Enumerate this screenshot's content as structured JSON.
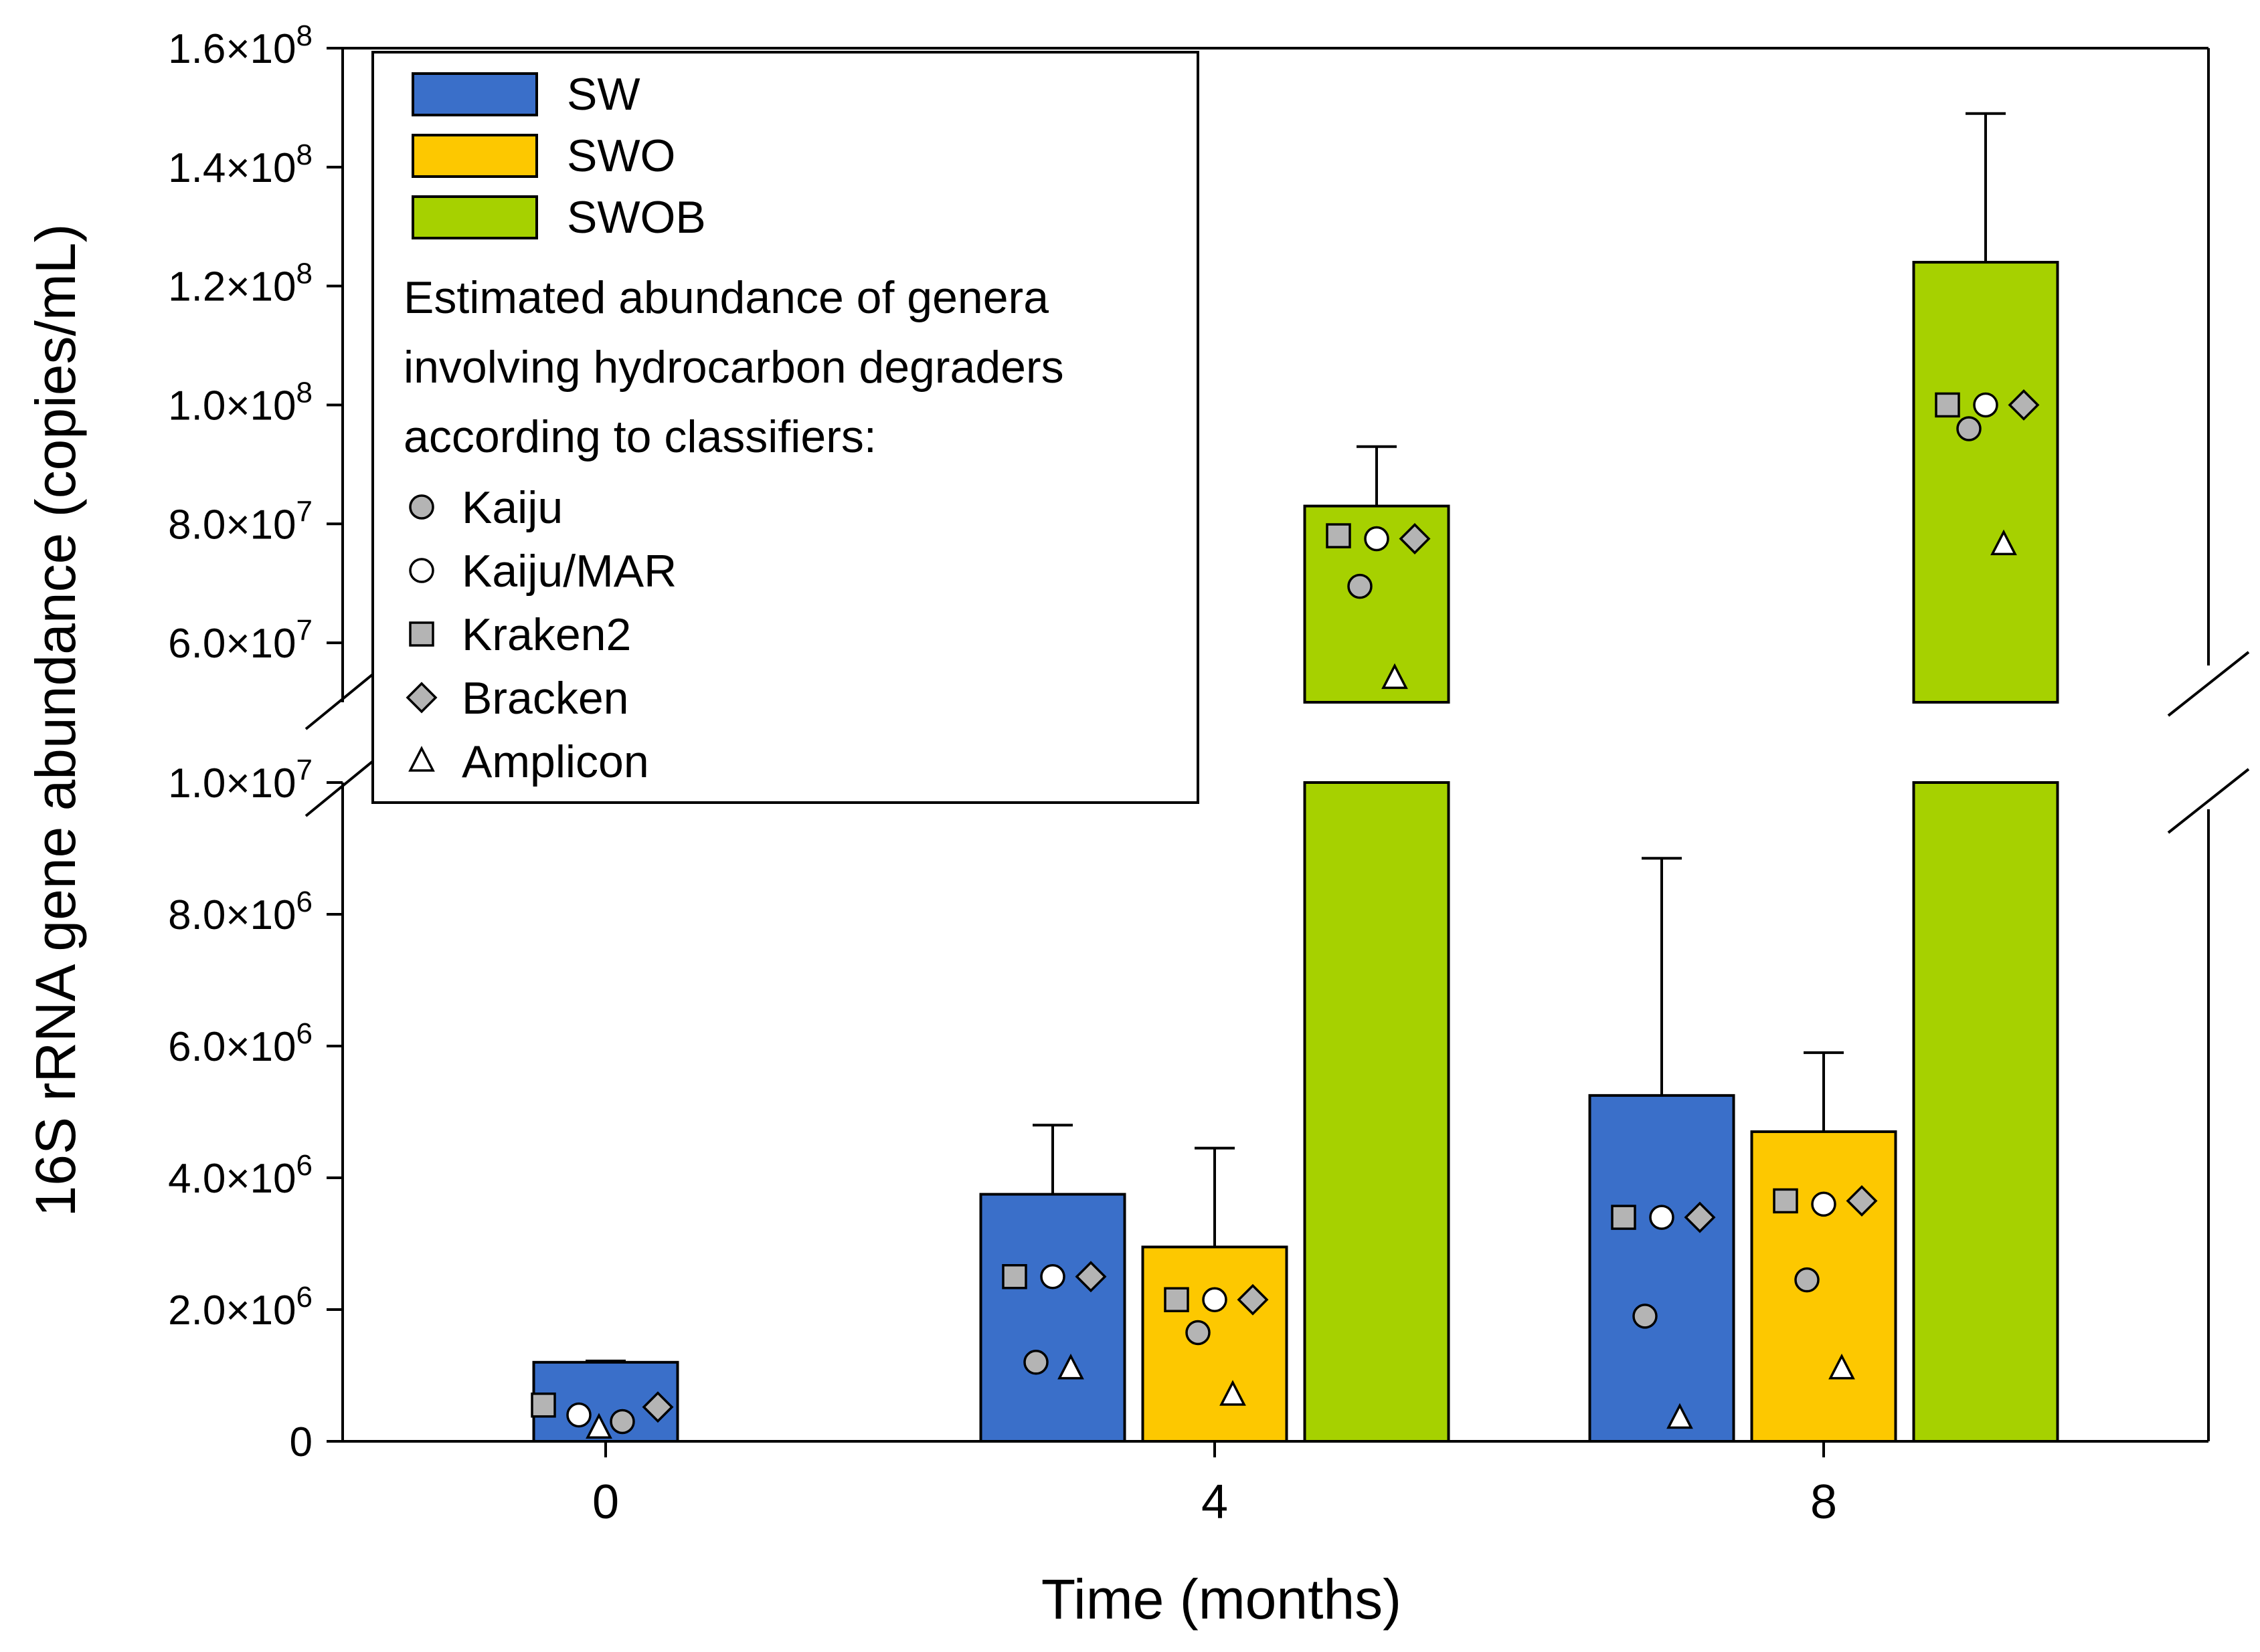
{
  "chart_data": {
    "type": "bar",
    "xlabel": "Time (months)",
    "ylabel": "16S rRNA gene abundance (copies/mL)",
    "categories": [
      "0",
      "4",
      "8"
    ],
    "y_axis": {
      "broken": true,
      "lower_segment": {
        "range": [
          0,
          10000000
        ],
        "ticks": [
          0,
          2000000,
          4000000,
          6000000,
          8000000,
          10000000
        ]
      },
      "upper_segment": {
        "range": [
          50000000,
          160000000
        ],
        "ticks": [
          60000000,
          80000000,
          100000000,
          120000000,
          140000000,
          160000000
        ]
      },
      "tick_labels": {
        "lower": [
          "0",
          "2.0×10",
          "4.0×10",
          "6.0×10",
          "8.0×10",
          "1.0×10"
        ],
        "lower_exp": [
          "",
          "6",
          "6",
          "6",
          "6",
          "7"
        ],
        "upper": [
          "6.0×10",
          "8.0×10",
          "1.0×10",
          "1.2×10",
          "1.4×10",
          "1.6×10"
        ],
        "upper_exp": [
          "7",
          "7",
          "8",
          "8",
          "8",
          "8"
        ]
      }
    },
    "series": [
      {
        "name": "SW",
        "color": "#3a6fc9",
        "values": [
          1200000,
          3750000,
          5250000
        ],
        "error_upper": [
          1220000,
          4800000,
          8850000
        ]
      },
      {
        "name": "SWO",
        "color": "#fdc800",
        "values": [
          null,
          2950000,
          4700000
        ],
        "error_upper": [
          null,
          4450000,
          5900000
        ]
      },
      {
        "name": "SWOB",
        "color": "#a6d100",
        "values": [
          null,
          83000000,
          124000000
        ],
        "error_upper": [
          null,
          93000000,
          149000000
        ]
      }
    ],
    "classifier_estimates": [
      {
        "time": "0",
        "series": "SW",
        "Kraken2": 550000,
        "Kaiju/MAR": 400000,
        "Kaiju": 300000,
        "Bracken": 520000,
        "Amplicon": 200000
      },
      {
        "time": "4",
        "series": "SW",
        "Kraken2": 2500000,
        "Kaiju/MAR": 2500000,
        "Kaiju": 1200000,
        "Bracken": 2500000,
        "Amplicon": 1100000
      },
      {
        "time": "4",
        "series": "SWO",
        "Kraken2": 2150000,
        "Kaiju/MAR": 2150000,
        "Kaiju": 1650000,
        "Bracken": 2150000,
        "Amplicon": 700000
      },
      {
        "time": "4",
        "series": "SWOB",
        "Kraken2": 78000000,
        "Kaiju/MAR": 77500000,
        "Kaiju": 69500000,
        "Bracken": 77500000,
        "Amplicon": 54000000
      },
      {
        "time": "8",
        "series": "SW",
        "Kraken2": 3400000,
        "Kaiju/MAR": 3400000,
        "Kaiju": 1900000,
        "Bracken": 3400000,
        "Amplicon": 350000
      },
      {
        "time": "8",
        "series": "SWO",
        "Kraken2": 3650000,
        "Kaiju/MAR": 3600000,
        "Kaiju": 2450000,
        "Bracken": 3650000,
        "Amplicon": 1100000
      },
      {
        "time": "8",
        "series": "SWOB",
        "Kraken2": 100000000,
        "Kaiju/MAR": 100000000,
        "Kaiju": 96000000,
        "Bracken": 100000000,
        "Amplicon": 76500000
      }
    ],
    "legend": {
      "placement": "top-left",
      "series": [
        "SW",
        "SWO",
        "SWOB"
      ],
      "note_lines": [
        "Estimated abundance of genera",
        "involving hydrocarbon degraders",
        "according to classifiers:"
      ],
      "markers": [
        {
          "label": "Kaiju",
          "shape": "circle",
          "fill": "#b4b4b4"
        },
        {
          "label": "Kaiju/MAR",
          "shape": "circle",
          "fill": "#ffffff"
        },
        {
          "label": "Kraken2",
          "shape": "square",
          "fill": "#b4b4b4"
        },
        {
          "label": "Bracken",
          "shape": "diamond",
          "fill": "#b4b4b4"
        },
        {
          "label": "Amplicon",
          "shape": "triangle",
          "fill": "#ffffff"
        }
      ]
    }
  }
}
